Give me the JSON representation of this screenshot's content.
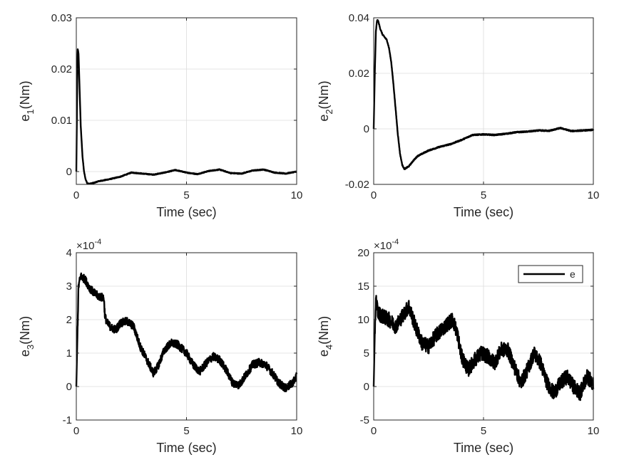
{
  "chart_data": [
    {
      "type": "line",
      "xlabel": "Time (sec)",
      "ylabel_main": "e",
      "ylabel_sub": "1",
      "ylabel_unit": "(Nm)",
      "exponent": "",
      "xlim": [
        0,
        10
      ],
      "ylim": [
        -0.0025,
        0.03
      ],
      "xticks": [
        0,
        5,
        10
      ],
      "xtick_labels": [
        "0",
        "5",
        "10"
      ],
      "yticks": [
        0,
        0.01,
        0.02,
        0.03
      ],
      "ytick_labels": [
        "0",
        "0.01",
        "0.02",
        "0.03"
      ],
      "grid": true,
      "noise": 8e-05,
      "series": [
        {
          "name": "e",
          "x": [
            0,
            0.03,
            0.06,
            0.1,
            0.15,
            0.2,
            0.28,
            0.35,
            0.42,
            0.5,
            0.6,
            0.8,
            1.0,
            1.5,
            2.0,
            2.5,
            3.0,
            3.5,
            4.0,
            4.5,
            5.0,
            5.5,
            6.0,
            6.5,
            7.0,
            7.5,
            8.0,
            8.5,
            9.0,
            9.5,
            10.0
          ],
          "y": [
            0,
            0.012,
            0.024,
            0.023,
            0.016,
            0.009,
            0.003,
            0.0,
            -0.0015,
            -0.0023,
            -0.0024,
            -0.0022,
            -0.0019,
            -0.0015,
            -0.001,
            -0.0002,
            -0.0004,
            -0.0006,
            -0.0002,
            0.0003,
            -0.0002,
            -0.0005,
            0.0001,
            0.0004,
            -0.0003,
            -0.0004,
            0.0002,
            0.0004,
            -0.0002,
            -0.0004,
            0.0
          ]
        }
      ]
    },
    {
      "type": "line",
      "xlabel": "Time (sec)",
      "ylabel_main": "e",
      "ylabel_sub": "2",
      "ylabel_unit": "(Nm)",
      "exponent": "",
      "xlim": [
        0,
        10
      ],
      "ylim": [
        -0.02,
        0.04
      ],
      "xticks": [
        0,
        5,
        10
      ],
      "xtick_labels": [
        "0",
        "5",
        "10"
      ],
      "yticks": [
        -0.02,
        0,
        0.02,
        0.04
      ],
      "ytick_labels": [
        "-0.02",
        "0",
        "0.02",
        "0.04"
      ],
      "grid": true,
      "noise": 0.0002,
      "series": [
        {
          "name": "e",
          "x": [
            0,
            0.05,
            0.1,
            0.15,
            0.2,
            0.3,
            0.4,
            0.5,
            0.6,
            0.7,
            0.8,
            0.9,
            1.0,
            1.1,
            1.2,
            1.3,
            1.4,
            1.6,
            1.8,
            2.0,
            2.5,
            3.0,
            3.5,
            4.0,
            4.5,
            5.0,
            5.5,
            6.0,
            6.5,
            7.0,
            7.5,
            8.0,
            8.5,
            9.0,
            9.5,
            10.0
          ],
          "y": [
            0,
            0.02,
            0.035,
            0.039,
            0.039,
            0.036,
            0.034,
            0.033,
            0.032,
            0.029,
            0.024,
            0.016,
            0.007,
            -0.002,
            -0.009,
            -0.013,
            -0.0145,
            -0.0135,
            -0.0115,
            -0.0098,
            -0.0078,
            -0.0065,
            -0.0055,
            -0.004,
            -0.0022,
            -0.002,
            -0.0022,
            -0.0018,
            -0.0012,
            -0.001,
            -0.0006,
            -0.0007,
            0.0003,
            -0.0008,
            -0.0006,
            -0.0004
          ]
        }
      ]
    },
    {
      "type": "line",
      "xlabel": "Time (sec)",
      "ylabel_main": "e",
      "ylabel_sub": "3",
      "ylabel_unit": "(Nm)",
      "exponent": "-4",
      "xlim": [
        0,
        10
      ],
      "ylim": [
        -1,
        4
      ],
      "xticks": [
        0,
        5,
        10
      ],
      "xtick_labels": [
        "0",
        "5",
        "10"
      ],
      "yticks": [
        -1,
        0,
        1,
        2,
        3,
        4
      ],
      "ytick_labels": [
        "-1",
        "0",
        "1",
        "2",
        "3",
        "4"
      ],
      "grid": true,
      "noise": 0.12,
      "series": [
        {
          "name": "e",
          "x": [
            0,
            0.05,
            0.1,
            0.2,
            0.4,
            0.6,
            0.8,
            1.0,
            1.25,
            1.3,
            1.4,
            1.6,
            1.8,
            2.0,
            2.3,
            2.6,
            2.9,
            3.2,
            3.5,
            3.7,
            4.0,
            4.3,
            4.6,
            5.0,
            5.3,
            5.6,
            5.9,
            6.2,
            6.5,
            6.8,
            7.1,
            7.4,
            7.7,
            8.0,
            8.3,
            8.6,
            8.9,
            9.2,
            9.5,
            9.8,
            10.0
          ],
          "y": [
            0,
            1.5,
            3.0,
            3.3,
            3.2,
            2.95,
            2.8,
            2.7,
            2.65,
            2.1,
            1.9,
            1.75,
            1.7,
            1.9,
            1.95,
            1.8,
            1.2,
            0.8,
            0.4,
            0.6,
            1.1,
            1.3,
            1.25,
            1.0,
            0.65,
            0.45,
            0.7,
            0.9,
            0.8,
            0.5,
            0.1,
            0.05,
            0.35,
            0.65,
            0.72,
            0.65,
            0.4,
            0.1,
            -0.05,
            0.1,
            0.3
          ]
        }
      ]
    },
    {
      "type": "line",
      "xlabel": "Time (sec)",
      "ylabel_main": "e",
      "ylabel_sub": "4",
      "ylabel_unit": "(Nm)",
      "exponent": "-4",
      "xlim": [
        0,
        10
      ],
      "ylim": [
        -5,
        20
      ],
      "xticks": [
        0,
        5,
        10
      ],
      "xtick_labels": [
        "0",
        "5",
        "10"
      ],
      "yticks": [
        -5,
        0,
        5,
        10,
        15,
        20
      ],
      "ytick_labels": [
        "-5",
        "0",
        "5",
        "10",
        "15",
        "20"
      ],
      "grid": true,
      "noise": 1.1,
      "legend": "e",
      "series": [
        {
          "name": "e",
          "x": [
            0,
            0.05,
            0.1,
            0.2,
            0.4,
            0.7,
            1.0,
            1.3,
            1.6,
            1.9,
            2.2,
            2.5,
            2.8,
            3.1,
            3.4,
            3.6,
            3.8,
            4.0,
            4.3,
            4.6,
            4.9,
            5.2,
            5.5,
            5.8,
            6.1,
            6.4,
            6.7,
            7.0,
            7.3,
            7.6,
            7.9,
            8.2,
            8.5,
            8.8,
            9.1,
            9.4,
            9.7,
            10.0
          ],
          "y": [
            0,
            8,
            13,
            11,
            10.5,
            10,
            9,
            10.5,
            12,
            9,
            6.5,
            6,
            7.5,
            8.5,
            9.5,
            10,
            8,
            4.5,
            2.5,
            4,
            5,
            4.5,
            3.5,
            5.5,
            5.5,
            3,
            0.5,
            2.5,
            5,
            3.5,
            0.5,
            -1,
            0.5,
            1.5,
            0,
            -1,
            1.5,
            0.5
          ]
        }
      ]
    }
  ]
}
